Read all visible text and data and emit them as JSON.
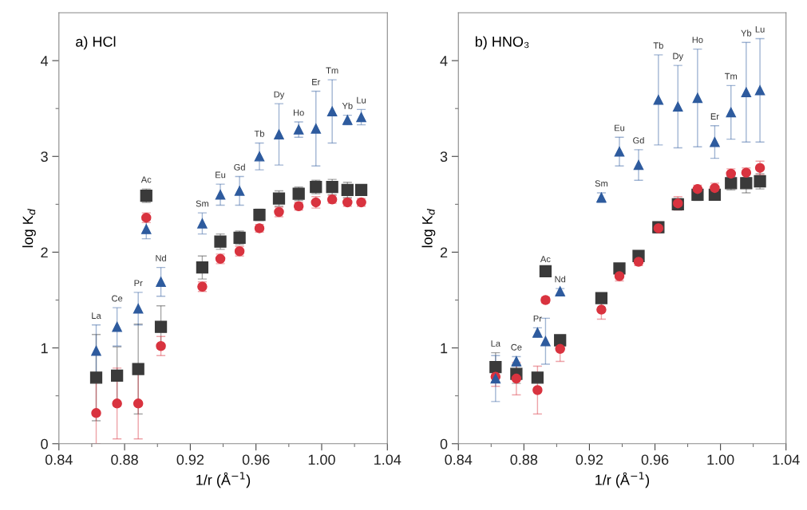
{
  "chart_data": [
    {
      "type": "scatter",
      "title": "a) HCl",
      "xlabel": "1/r (Å$^{−1}$)",
      "ylabel": "log K$_{d}$",
      "x": [
        0.8627,
        0.8754,
        0.8883,
        0.9021,
        0.8932,
        0.9273,
        0.9383,
        0.95,
        0.9621,
        0.974,
        0.986,
        0.9965,
        1.0064,
        1.0157,
        1.0241
      ],
      "series": [
        {
          "type": "scatter",
          "marker": "square",
          "color": "#3a3a3a",
          "values": [
            0.69,
            0.71,
            0.78,
            1.22,
            2.59,
            1.84,
            2.11,
            2.15,
            2.39,
            2.56,
            2.61,
            2.68,
            2.68,
            2.65,
            2.65
          ],
          "errors": [
            0.45,
            0.3,
            0.47,
            0.22,
            0.07,
            0.12,
            0.08,
            0.07,
            0.06,
            0.08,
            0.07,
            0.07,
            0.08,
            0.08,
            0.05
          ]
        },
        {
          "type": "scatter",
          "marker": "circle",
          "color": "#d9333f",
          "values": [
            0.32,
            0.42,
            0.42,
            1.02,
            2.36,
            1.64,
            1.93,
            2.01,
            2.25,
            2.42,
            2.48,
            2.52,
            2.55,
            2.52,
            2.52
          ],
          "errors": [
            0.32,
            0.37,
            0.37,
            0.1,
            0.05,
            0.05,
            0.05,
            0.05,
            0.04,
            0.05,
            0.04,
            0.06,
            0.04,
            0.04,
            0.04
          ]
        },
        {
          "type": "scatter",
          "marker": "triangle",
          "color": "#2e5b9e",
          "values": [
            0.97,
            1.22,
            1.41,
            1.69,
            2.24,
            2.3,
            2.6,
            2.64,
            3.0,
            3.23,
            3.28,
            3.29,
            3.47,
            3.38,
            3.41
          ],
          "errors": [
            0.27,
            0.2,
            0.17,
            0.15,
            0.1,
            0.11,
            0.11,
            0.15,
            0.14,
            0.32,
            0.08,
            0.39,
            0.33,
            0.05,
            0.08
          ]
        }
      ],
      "annotations": [
        "La",
        "Ce",
        "Pr",
        "Nd",
        "Ac",
        "Sm",
        "Eu",
        "Gd",
        "Tb",
        "Dy",
        "Ho",
        "Er",
        "Tm",
        "Yb",
        "Lu"
      ],
      "xlim": [
        0.84,
        1.04
      ],
      "ylim": [
        0,
        4.5
      ],
      "xticks": [
        {
          "value": 0.84,
          "label": "0.84"
        },
        {
          "value": 0.88,
          "label": "0.88"
        },
        {
          "value": 0.92,
          "label": "0.92"
        },
        {
          "value": 0.96,
          "label": "0.96"
        },
        {
          "value": 1.0,
          "label": "1.00"
        },
        {
          "value": 1.04,
          "label": "1.04"
        }
      ],
      "yticks": [
        0,
        1,
        2,
        3,
        4
      ]
    },
    {
      "type": "scatter",
      "title": "b) HNO₃",
      "xlabel": "1/r (Å$^{−1}$)",
      "ylabel": "log K$_{d}$",
      "x": [
        0.8627,
        0.8754,
        0.8883,
        0.9021,
        0.8932,
        0.9273,
        0.9383,
        0.95,
        0.9621,
        0.974,
        0.986,
        0.9965,
        1.0064,
        1.0157,
        1.0241
      ],
      "series": [
        {
          "type": "scatter",
          "marker": "square",
          "color": "#3a3a3a",
          "values": [
            0.8,
            0.73,
            0.69,
            1.08,
            1.8,
            1.52,
            1.83,
            1.96,
            2.26,
            2.5,
            2.6,
            2.6,
            2.72,
            2.72,
            2.74
          ],
          "errors": [
            0.15,
            0.1,
            0.05,
            0.05,
            0.03,
            0.05,
            0.05,
            0.04,
            0.05,
            0.06,
            0.06,
            0.04,
            0.07,
            0.1,
            0.08
          ]
        },
        {
          "type": "scatter",
          "marker": "circle",
          "color": "#d9333f",
          "values": [
            0.7,
            0.68,
            0.56,
            0.99,
            1.5,
            1.4,
            1.75,
            1.9,
            2.25,
            2.51,
            2.66,
            2.67,
            2.82,
            2.83,
            2.88
          ],
          "errors": [
            0.1,
            0.17,
            0.25,
            0.13,
            0.03,
            0.1,
            0.05,
            0.04,
            0.05,
            0.07,
            0.04,
            0.05,
            0.05,
            0.05,
            0.07
          ]
        },
        {
          "type": "scatter",
          "marker": "triangle",
          "color": "#2e5b9e",
          "values": [
            0.68,
            0.86,
            1.16,
            1.59,
            1.07,
            2.57,
            3.05,
            2.91,
            3.59,
            3.52,
            3.61,
            3.15,
            3.46,
            3.67,
            3.69
          ],
          "errors": [
            0.24,
            0.05,
            0.05,
            0.03,
            0.24,
            0.05,
            0.15,
            0.16,
            0.47,
            0.43,
            0.51,
            0.17,
            0.28,
            0.52,
            0.54
          ]
        }
      ],
      "annotations": [
        "La",
        "Ce",
        "Pr",
        "Nd",
        "Ac",
        "Sm",
        "Eu",
        "Gd",
        "Tb",
        "Dy",
        "Ho",
        "Er",
        "Tm",
        "Yb",
        "Lu"
      ],
      "xlim": [
        0.84,
        1.04
      ],
      "ylim": [
        0,
        4.5
      ],
      "xticks": [
        {
          "value": 0.84,
          "label": "0.84"
        },
        {
          "value": 0.88,
          "label": "0.88"
        },
        {
          "value": 0.92,
          "label": "0.92"
        },
        {
          "value": 0.96,
          "label": "0.96"
        },
        {
          "value": 1.0,
          "label": "1.00"
        },
        {
          "value": 1.04,
          "label": "1.04"
        }
      ],
      "yticks": [
        0,
        1,
        2,
        3,
        4
      ]
    }
  ]
}
